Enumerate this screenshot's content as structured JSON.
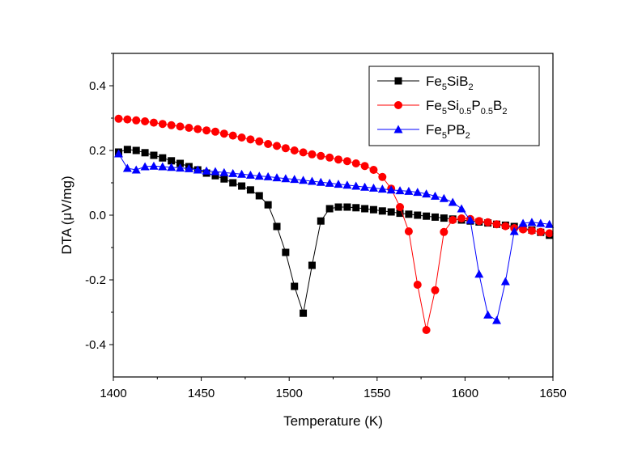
{
  "chart_data": {
    "type": "line",
    "xlabel": "Temperature (K)",
    "ylabel": "DTA (μV/mg)",
    "xlim": [
      1400,
      1650
    ],
    "ylim": [
      -0.5,
      0.5
    ],
    "x_ticks": [
      "1400",
      "1450",
      "1500",
      "1550",
      "1600",
      "1650"
    ],
    "y_ticks": [
      "-0.4",
      "-0.2",
      "0.0",
      "0.2",
      "0.4"
    ],
    "x_tick_values": [
      1400,
      1450,
      1500,
      1550,
      1600,
      1650
    ],
    "y_tick_values": [
      -0.4,
      -0.2,
      0.0,
      0.2,
      0.4
    ],
    "grid": false,
    "legend_position": "top-right",
    "series": [
      {
        "name": "Fe5SiB2",
        "name_parts": [
          [
            "Fe",
            ""
          ],
          [
            "5",
            "sub"
          ],
          [
            "SiB",
            ""
          ],
          [
            "2",
            "sub"
          ]
        ],
        "color": "#000000",
        "marker": "square",
        "points": [
          [
            1403,
            0.195
          ],
          [
            1408,
            0.203
          ],
          [
            1413,
            0.2
          ],
          [
            1418,
            0.193
          ],
          [
            1423,
            0.185
          ],
          [
            1428,
            0.177
          ],
          [
            1433,
            0.168
          ],
          [
            1438,
            0.16
          ],
          [
            1443,
            0.15
          ],
          [
            1448,
            0.14
          ],
          [
            1453,
            0.13
          ],
          [
            1458,
            0.122
          ],
          [
            1463,
            0.112
          ],
          [
            1468,
            0.1
          ],
          [
            1473,
            0.09
          ],
          [
            1478,
            0.078
          ],
          [
            1483,
            0.06
          ],
          [
            1488,
            0.032
          ],
          [
            1493,
            -0.035
          ],
          [
            1498,
            -0.115
          ],
          [
            1503,
            -0.22
          ],
          [
            1508,
            -0.303
          ],
          [
            1513,
            -0.155
          ],
          [
            1518,
            -0.018
          ],
          [
            1523,
            0.02
          ],
          [
            1528,
            0.025
          ],
          [
            1533,
            0.025
          ],
          [
            1538,
            0.023
          ],
          [
            1543,
            0.02
          ],
          [
            1548,
            0.017
          ],
          [
            1553,
            0.013
          ],
          [
            1558,
            0.01
          ],
          [
            1563,
            0.006
          ],
          [
            1568,
            0.003
          ],
          [
            1573,
            0.0
          ],
          [
            1578,
            -0.003
          ],
          [
            1583,
            -0.006
          ],
          [
            1588,
            -0.009
          ],
          [
            1593,
            -0.012
          ],
          [
            1598,
            -0.015
          ],
          [
            1603,
            -0.018
          ],
          [
            1608,
            -0.021
          ],
          [
            1613,
            -0.024
          ],
          [
            1618,
            -0.028
          ],
          [
            1623,
            -0.031
          ],
          [
            1628,
            -0.035
          ],
          [
            1633,
            -0.04
          ],
          [
            1638,
            -0.046
          ],
          [
            1643,
            -0.053
          ],
          [
            1648,
            -0.062
          ]
        ]
      },
      {
        "name": "Fe5Si0.5P0.5B2",
        "name_parts": [
          [
            "Fe",
            ""
          ],
          [
            "5",
            "sub"
          ],
          [
            "Si",
            ""
          ],
          [
            "0.5",
            "sub"
          ],
          [
            "P",
            ""
          ],
          [
            "0.5",
            "sub"
          ],
          [
            "B",
            ""
          ],
          [
            "2",
            "sub"
          ]
        ],
        "color": "#ff0000",
        "marker": "circle",
        "points": [
          [
            1403,
            0.298
          ],
          [
            1408,
            0.296
          ],
          [
            1413,
            0.293
          ],
          [
            1418,
            0.29
          ],
          [
            1423,
            0.286
          ],
          [
            1428,
            0.282
          ],
          [
            1433,
            0.278
          ],
          [
            1438,
            0.274
          ],
          [
            1443,
            0.27
          ],
          [
            1448,
            0.266
          ],
          [
            1453,
            0.262
          ],
          [
            1458,
            0.258
          ],
          [
            1463,
            0.252
          ],
          [
            1468,
            0.246
          ],
          [
            1473,
            0.24
          ],
          [
            1478,
            0.234
          ],
          [
            1483,
            0.228
          ],
          [
            1488,
            0.22
          ],
          [
            1493,
            0.214
          ],
          [
            1498,
            0.207
          ],
          [
            1503,
            0.2
          ],
          [
            1508,
            0.194
          ],
          [
            1513,
            0.188
          ],
          [
            1518,
            0.183
          ],
          [
            1523,
            0.178
          ],
          [
            1528,
            0.172
          ],
          [
            1533,
            0.167
          ],
          [
            1538,
            0.16
          ],
          [
            1543,
            0.152
          ],
          [
            1548,
            0.14
          ],
          [
            1553,
            0.118
          ],
          [
            1558,
            0.082
          ],
          [
            1563,
            0.025
          ],
          [
            1568,
            -0.05
          ],
          [
            1573,
            -0.215
          ],
          [
            1578,
            -0.355
          ],
          [
            1583,
            -0.232
          ],
          [
            1588,
            -0.052
          ],
          [
            1593,
            -0.015
          ],
          [
            1598,
            -0.01
          ],
          [
            1603,
            -0.012
          ],
          [
            1608,
            -0.018
          ],
          [
            1613,
            -0.022
          ],
          [
            1618,
            -0.028
          ],
          [
            1623,
            -0.034
          ],
          [
            1628,
            -0.04
          ],
          [
            1633,
            -0.044
          ],
          [
            1638,
            -0.048
          ],
          [
            1643,
            -0.052
          ],
          [
            1648,
            -0.056
          ]
        ]
      },
      {
        "name": "Fe5PB2",
        "name_parts": [
          [
            "Fe",
            ""
          ],
          [
            "5",
            "sub"
          ],
          [
            "PB",
            ""
          ],
          [
            "2",
            "sub"
          ]
        ],
        "color": "#0000ff",
        "marker": "triangle",
        "points": [
          [
            1403,
            0.19
          ],
          [
            1408,
            0.145
          ],
          [
            1413,
            0.14
          ],
          [
            1418,
            0.15
          ],
          [
            1423,
            0.152
          ],
          [
            1428,
            0.15
          ],
          [
            1433,
            0.148
          ],
          [
            1438,
            0.146
          ],
          [
            1443,
            0.144
          ],
          [
            1448,
            0.14
          ],
          [
            1453,
            0.137
          ],
          [
            1458,
            0.135
          ],
          [
            1463,
            0.132
          ],
          [
            1468,
            0.129
          ],
          [
            1473,
            0.127
          ],
          [
            1478,
            0.124
          ],
          [
            1483,
            0.121
          ],
          [
            1488,
            0.119
          ],
          [
            1493,
            0.116
          ],
          [
            1498,
            0.113
          ],
          [
            1503,
            0.111
          ],
          [
            1508,
            0.108
          ],
          [
            1513,
            0.105
          ],
          [
            1518,
            0.102
          ],
          [
            1523,
            0.099
          ],
          [
            1528,
            0.096
          ],
          [
            1533,
            0.093
          ],
          [
            1538,
            0.09
          ],
          [
            1543,
            0.087
          ],
          [
            1548,
            0.084
          ],
          [
            1553,
            0.081
          ],
          [
            1558,
            0.078
          ],
          [
            1563,
            0.076
          ],
          [
            1568,
            0.074
          ],
          [
            1573,
            0.071
          ],
          [
            1578,
            0.066
          ],
          [
            1583,
            0.059
          ],
          [
            1588,
            0.052
          ],
          [
            1593,
            0.04
          ],
          [
            1598,
            0.02
          ],
          [
            1603,
            -0.015
          ],
          [
            1608,
            -0.182
          ],
          [
            1613,
            -0.308
          ],
          [
            1618,
            -0.325
          ],
          [
            1623,
            -0.205
          ],
          [
            1628,
            -0.05
          ],
          [
            1633,
            -0.025
          ],
          [
            1638,
            -0.022
          ],
          [
            1643,
            -0.025
          ],
          [
            1648,
            -0.028
          ]
        ]
      }
    ]
  }
}
